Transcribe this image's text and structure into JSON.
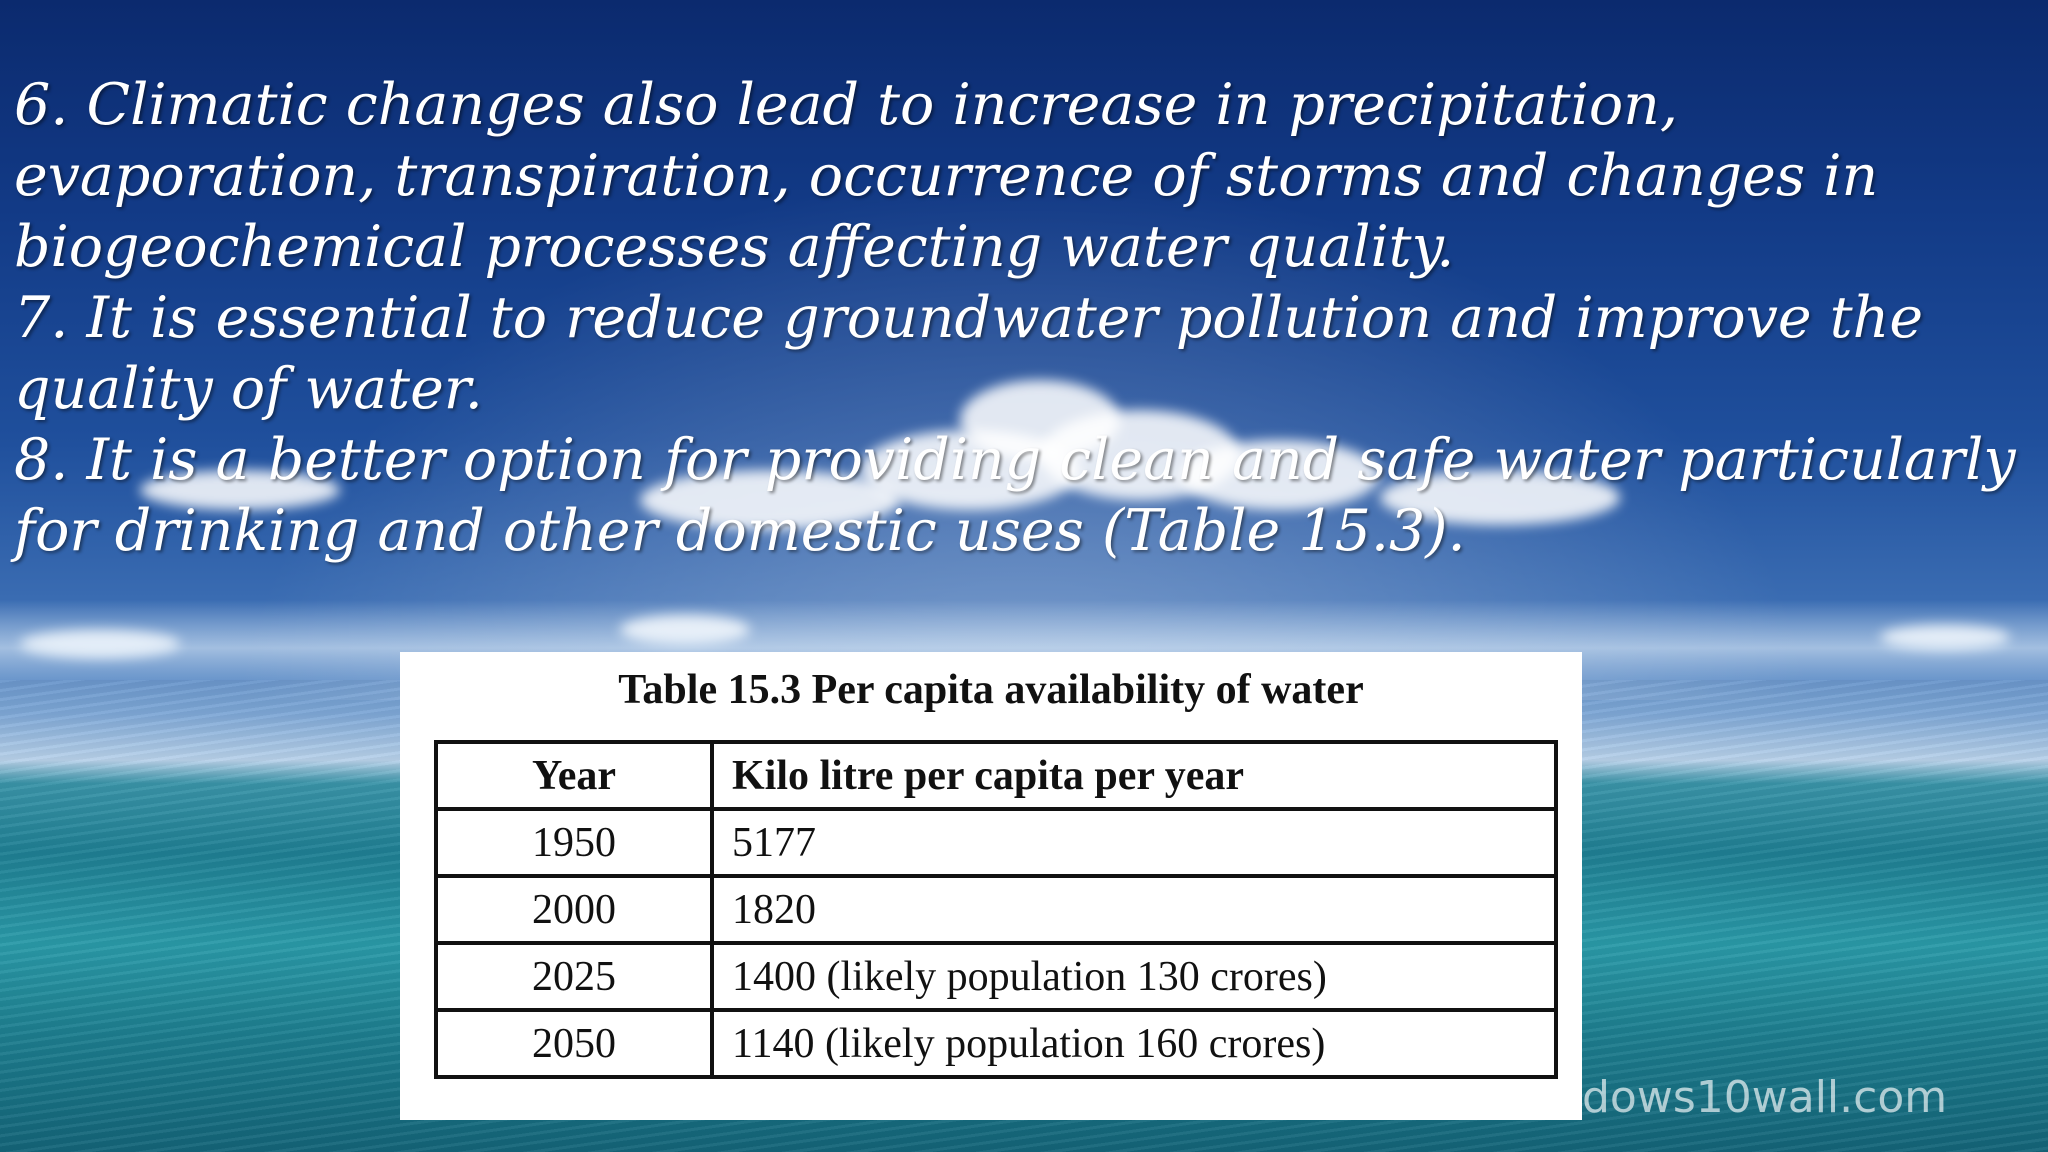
{
  "bullets": [
    "6. Climatic changes also lead to increase in precipitation, evaporation, transpiration, occurrence of storms and changes in biogeochemical processes affecting water quality.",
    "7. It is essential to reduce groundwater pollution and improve the quality of water.",
    "8. It is a better option for providing clean and safe water particularly for drinking and other domestic uses (Table 15.3)."
  ],
  "table": {
    "caption": "Table 15.3 Per capita availability of water",
    "headers": [
      "Year",
      "Kilo litre per capita per year"
    ],
    "rows": [
      [
        "1950",
        "5177"
      ],
      [
        "2000",
        "1820"
      ],
      [
        "2025",
        "1400 (likely population 130 crores)"
      ],
      [
        "2050",
        "1140 (likely population 160 crores)"
      ]
    ]
  },
  "watermark": "dows10wall.com",
  "colors": {
    "text": "#ffffff",
    "sky": "#123a86",
    "sea": "#1f7f93",
    "table_bg": "#ffffff"
  }
}
